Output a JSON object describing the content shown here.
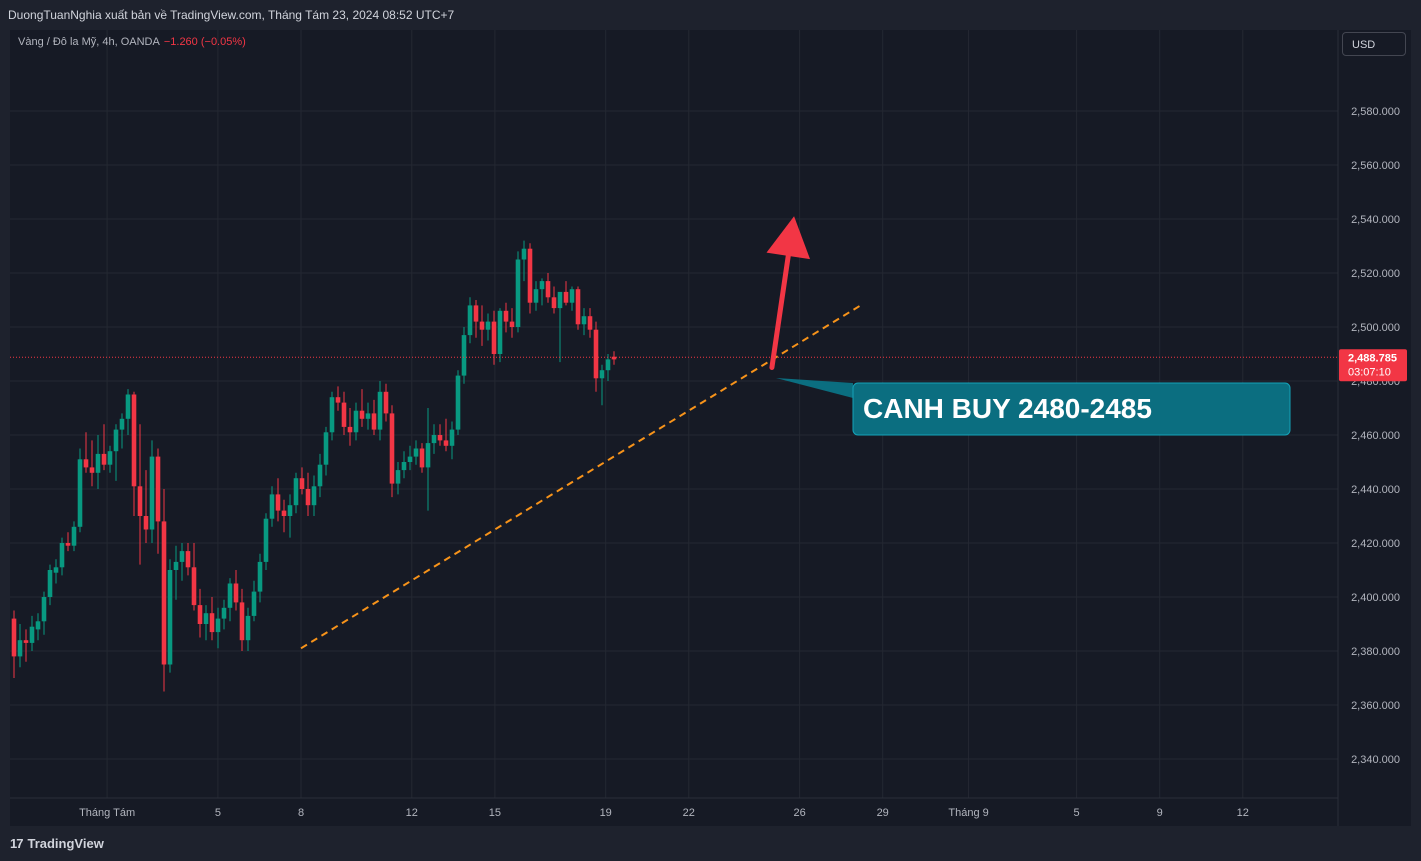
{
  "header": {
    "published": "DuongTuanNghia xuất bản về TradingView.com, Tháng Tám 23, 2024 08:52 UTC+7"
  },
  "legend": {
    "symbol": "Vàng / Đô la Mỹ, 4h, OANDA",
    "change": "−1.260 (−0.05%)"
  },
  "currency_button": "USD",
  "footer": {
    "brand": "TradingView",
    "logo_icon": "tradingview-logo-icon"
  },
  "chart_data": {
    "type": "candlestick",
    "ylim": [
      2330,
      2600
    ],
    "y_ticks": [
      "2,580.000",
      "2,560.000",
      "2,540.000",
      "2,520.000",
      "2,500.000",
      "2,480.000",
      "2,460.000",
      "2,440.000",
      "2,420.000",
      "2,400.000",
      "2,380.000",
      "2,360.000",
      "2,340.000"
    ],
    "x_ticks": [
      "Tháng Tám",
      "5",
      "8",
      "12",
      "15",
      "19",
      "22",
      "26",
      "29",
      "Tháng 9",
      "5",
      "9",
      "12"
    ],
    "last_price": {
      "value": 2488.785,
      "label": "2,488.785",
      "countdown": "03:07:10"
    },
    "colors": {
      "up": "#089981",
      "down": "#f23645",
      "trendline": "#f7931a",
      "arrow": "#f23645",
      "callout": "#0b6e80"
    },
    "annotation": {
      "text": "CANH BUY 2480-2485"
    },
    "trendline": {
      "from": [
        8,
        2381
      ],
      "to": [
        28.2,
        2508
      ]
    },
    "arrow": {
      "from": [
        25,
        2485
      ],
      "to": [
        25.8,
        2541
      ]
    },
    "candles": [
      {
        "o": 2392,
        "h": 2395,
        "l": 2370,
        "c": 2378
      },
      {
        "o": 2378,
        "h": 2390,
        "l": 2374,
        "c": 2384
      },
      {
        "o": 2384,
        "h": 2388,
        "l": 2376,
        "c": 2383
      },
      {
        "o": 2383,
        "h": 2393,
        "l": 2380,
        "c": 2389
      },
      {
        "o": 2388,
        "h": 2394,
        "l": 2384,
        "c": 2391
      },
      {
        "o": 2391,
        "h": 2402,
        "l": 2386,
        "c": 2400
      },
      {
        "o": 2400,
        "h": 2412,
        "l": 2397,
        "c": 2410
      },
      {
        "o": 2409,
        "h": 2414,
        "l": 2405,
        "c": 2411
      },
      {
        "o": 2411,
        "h": 2422,
        "l": 2408,
        "c": 2420
      },
      {
        "o": 2420,
        "h": 2424,
        "l": 2417,
        "c": 2419
      },
      {
        "o": 2419,
        "h": 2428,
        "l": 2417,
        "c": 2426
      },
      {
        "o": 2426,
        "h": 2455,
        "l": 2424,
        "c": 2451
      },
      {
        "o": 2451,
        "h": 2461,
        "l": 2446,
        "c": 2448
      },
      {
        "o": 2448,
        "h": 2458,
        "l": 2441,
        "c": 2446
      },
      {
        "o": 2446,
        "h": 2460,
        "l": 2440,
        "c": 2453
      },
      {
        "o": 2453,
        "h": 2464,
        "l": 2447,
        "c": 2449
      },
      {
        "o": 2449,
        "h": 2456,
        "l": 2446,
        "c": 2454
      },
      {
        "o": 2454,
        "h": 2464,
        "l": 2443,
        "c": 2462
      },
      {
        "o": 2462,
        "h": 2468,
        "l": 2455,
        "c": 2466
      },
      {
        "o": 2466,
        "h": 2477,
        "l": 2460,
        "c": 2475
      },
      {
        "o": 2475,
        "h": 2476,
        "l": 2430,
        "c": 2441
      },
      {
        "o": 2441,
        "h": 2464,
        "l": 2412,
        "c": 2430
      },
      {
        "o": 2430,
        "h": 2447,
        "l": 2420,
        "c": 2425
      },
      {
        "o": 2425,
        "h": 2458,
        "l": 2420,
        "c": 2452
      },
      {
        "o": 2452,
        "h": 2455,
        "l": 2416,
        "c": 2428
      },
      {
        "o": 2428,
        "h": 2440,
        "l": 2365,
        "c": 2375
      },
      {
        "o": 2375,
        "h": 2414,
        "l": 2372,
        "c": 2410
      },
      {
        "o": 2410,
        "h": 2419,
        "l": 2399,
        "c": 2413
      },
      {
        "o": 2413,
        "h": 2420,
        "l": 2406,
        "c": 2417
      },
      {
        "o": 2417,
        "h": 2420,
        "l": 2408,
        "c": 2411
      },
      {
        "o": 2411,
        "h": 2420,
        "l": 2395,
        "c": 2397
      },
      {
        "o": 2397,
        "h": 2403,
        "l": 2385,
        "c": 2390
      },
      {
        "o": 2390,
        "h": 2397,
        "l": 2384,
        "c": 2394
      },
      {
        "o": 2394,
        "h": 2400,
        "l": 2384,
        "c": 2387
      },
      {
        "o": 2387,
        "h": 2396,
        "l": 2381,
        "c": 2392
      },
      {
        "o": 2392,
        "h": 2399,
        "l": 2388,
        "c": 2396
      },
      {
        "o": 2396,
        "h": 2407,
        "l": 2391,
        "c": 2405
      },
      {
        "o": 2405,
        "h": 2410,
        "l": 2395,
        "c": 2398
      },
      {
        "o": 2398,
        "h": 2403,
        "l": 2380,
        "c": 2384
      },
      {
        "o": 2384,
        "h": 2396,
        "l": 2380,
        "c": 2393
      },
      {
        "o": 2393,
        "h": 2406,
        "l": 2391,
        "c": 2402
      },
      {
        "o": 2402,
        "h": 2416,
        "l": 2398,
        "c": 2413
      },
      {
        "o": 2413,
        "h": 2431,
        "l": 2410,
        "c": 2429
      },
      {
        "o": 2429,
        "h": 2441,
        "l": 2426,
        "c": 2438
      },
      {
        "o": 2438,
        "h": 2444,
        "l": 2428,
        "c": 2432
      },
      {
        "o": 2432,
        "h": 2436,
        "l": 2424,
        "c": 2430
      },
      {
        "o": 2430,
        "h": 2438,
        "l": 2422,
        "c": 2434
      },
      {
        "o": 2434,
        "h": 2446,
        "l": 2431,
        "c": 2444
      },
      {
        "o": 2444,
        "h": 2448,
        "l": 2438,
        "c": 2440
      },
      {
        "o": 2440,
        "h": 2446,
        "l": 2430,
        "c": 2434
      },
      {
        "o": 2434,
        "h": 2445,
        "l": 2430,
        "c": 2441
      },
      {
        "o": 2441,
        "h": 2453,
        "l": 2437,
        "c": 2449
      },
      {
        "o": 2449,
        "h": 2463,
        "l": 2445,
        "c": 2461
      },
      {
        "o": 2461,
        "h": 2476,
        "l": 2458,
        "c": 2474
      },
      {
        "o": 2474,
        "h": 2478,
        "l": 2469,
        "c": 2472
      },
      {
        "o": 2472,
        "h": 2476,
        "l": 2460,
        "c": 2463
      },
      {
        "o": 2463,
        "h": 2470,
        "l": 2456,
        "c": 2461
      },
      {
        "o": 2461,
        "h": 2472,
        "l": 2458,
        "c": 2469
      },
      {
        "o": 2469,
        "h": 2477,
        "l": 2463,
        "c": 2466
      },
      {
        "o": 2466,
        "h": 2472,
        "l": 2462,
        "c": 2468
      },
      {
        "o": 2468,
        "h": 2473,
        "l": 2460,
        "c": 2462
      },
      {
        "o": 2462,
        "h": 2480,
        "l": 2458,
        "c": 2476
      },
      {
        "o": 2476,
        "h": 2479,
        "l": 2465,
        "c": 2468
      },
      {
        "o": 2468,
        "h": 2471,
        "l": 2437,
        "c": 2442
      },
      {
        "o": 2442,
        "h": 2450,
        "l": 2438,
        "c": 2447
      },
      {
        "o": 2447,
        "h": 2454,
        "l": 2444,
        "c": 2450
      },
      {
        "o": 2450,
        "h": 2456,
        "l": 2447,
        "c": 2452
      },
      {
        "o": 2452,
        "h": 2458,
        "l": 2449,
        "c": 2455
      },
      {
        "o": 2455,
        "h": 2457,
        "l": 2446,
        "c": 2448
      },
      {
        "o": 2448,
        "h": 2470,
        "l": 2432,
        "c": 2457
      },
      {
        "o": 2457,
        "h": 2464,
        "l": 2453,
        "c": 2460
      },
      {
        "o": 2460,
        "h": 2464,
        "l": 2456,
        "c": 2458
      },
      {
        "o": 2458,
        "h": 2466,
        "l": 2454,
        "c": 2456
      },
      {
        "o": 2456,
        "h": 2465,
        "l": 2451,
        "c": 2462
      },
      {
        "o": 2462,
        "h": 2484,
        "l": 2460,
        "c": 2482
      },
      {
        "o": 2482,
        "h": 2500,
        "l": 2479,
        "c": 2497
      },
      {
        "o": 2497,
        "h": 2511,
        "l": 2494,
        "c": 2508
      },
      {
        "o": 2508,
        "h": 2510,
        "l": 2496,
        "c": 2502
      },
      {
        "o": 2502,
        "h": 2508,
        "l": 2493,
        "c": 2499
      },
      {
        "o": 2499,
        "h": 2505,
        "l": 2495,
        "c": 2502
      },
      {
        "o": 2502,
        "h": 2506,
        "l": 2486,
        "c": 2490
      },
      {
        "o": 2490,
        "h": 2507,
        "l": 2487,
        "c": 2506
      },
      {
        "o": 2506,
        "h": 2509,
        "l": 2498,
        "c": 2502
      },
      {
        "o": 2502,
        "h": 2507,
        "l": 2496,
        "c": 2500
      },
      {
        "o": 2500,
        "h": 2528,
        "l": 2498,
        "c": 2525
      },
      {
        "o": 2525,
        "h": 2532,
        "l": 2517,
        "c": 2529
      },
      {
        "o": 2529,
        "h": 2531,
        "l": 2505,
        "c": 2509
      },
      {
        "o": 2509,
        "h": 2517,
        "l": 2506,
        "c": 2514
      },
      {
        "o": 2514,
        "h": 2518,
        "l": 2508,
        "c": 2517
      },
      {
        "o": 2517,
        "h": 2520,
        "l": 2509,
        "c": 2511
      },
      {
        "o": 2511,
        "h": 2515,
        "l": 2505,
        "c": 2507
      },
      {
        "o": 2507,
        "h": 2512,
        "l": 2487,
        "c": 2513
      },
      {
        "o": 2513,
        "h": 2517,
        "l": 2508,
        "c": 2509
      },
      {
        "o": 2509,
        "h": 2515,
        "l": 2506,
        "c": 2514
      },
      {
        "o": 2514,
        "h": 2515,
        "l": 2499,
        "c": 2501
      },
      {
        "o": 2501,
        "h": 2507,
        "l": 2497,
        "c": 2504
      },
      {
        "o": 2504,
        "h": 2507,
        "l": 2496,
        "c": 2499
      },
      {
        "o": 2499,
        "h": 2502,
        "l": 2476,
        "c": 2481
      },
      {
        "o": 2481,
        "h": 2486,
        "l": 2471,
        "c": 2484
      },
      {
        "o": 2484,
        "h": 2490,
        "l": 2480,
        "c": 2488
      },
      {
        "o": 2489,
        "h": 2491,
        "l": 2486,
        "c": 2488
      }
    ]
  }
}
